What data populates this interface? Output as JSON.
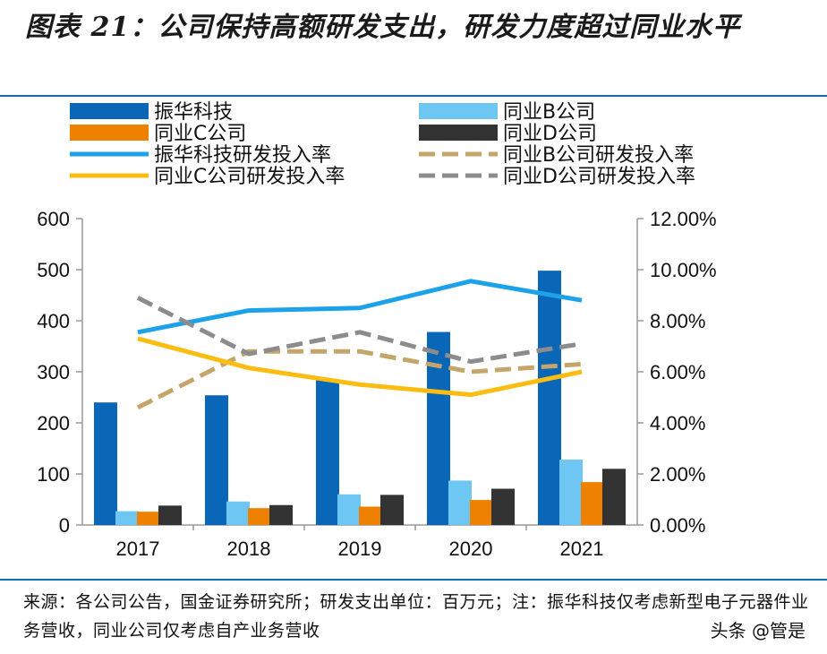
{
  "figure_title": "图表 21：公司保持高额研发支出，研发力度超过同业水平",
  "footnote": "来源：各公司公告，国金证券研究所；研发支出单位：百万元；注：振华科技仅考虑新型电子元器件业务营收，同业公司仅考虑自产业务营收",
  "watermark": "头条 @管是",
  "chart_data": {
    "type": "bar",
    "categories": [
      "2017",
      "2018",
      "2019",
      "2020",
      "2021"
    ],
    "ylim": [
      0,
      600
    ],
    "yticks": [
      "0",
      "100",
      "200",
      "300",
      "400",
      "500",
      "600"
    ],
    "y2lim": [
      0,
      12
    ],
    "y2ticks": [
      "0.00%",
      "2.00%",
      "4.00%",
      "6.00%",
      "8.00%",
      "10.00%",
      "12.00%"
    ],
    "grid": false,
    "legend_position": "top",
    "series": [
      {
        "name": "振华科技",
        "type": "bar",
        "color": "#0a66b7",
        "values": [
          240,
          254,
          285,
          378,
          498
        ]
      },
      {
        "name": "同业B公司",
        "type": "bar",
        "color": "#6ec6f3",
        "values": [
          27,
          46,
          60,
          87,
          128
        ]
      },
      {
        "name": "同业C公司",
        "type": "bar",
        "color": "#ee8200",
        "values": [
          26,
          33,
          36,
          49,
          84
        ]
      },
      {
        "name": "同业D公司",
        "type": "bar",
        "color": "#333333",
        "values": [
          38,
          39,
          59,
          71,
          110
        ]
      },
      {
        "name": "振华科技研发投入率",
        "type": "line",
        "axis": "right",
        "color": "#1da1e8",
        "dash": "solid",
        "values": [
          7.55,
          8.4,
          8.5,
          9.55,
          8.8
        ]
      },
      {
        "name": "同业B公司研发投入率",
        "type": "line",
        "axis": "right",
        "color": "#c4a56a",
        "dash": "dashed",
        "values": [
          4.6,
          6.8,
          6.8,
          6.0,
          6.3
        ]
      },
      {
        "name": "同业C公司研发投入率",
        "type": "line",
        "axis": "right",
        "color": "#fbbd12",
        "dash": "solid",
        "values": [
          7.3,
          6.15,
          5.5,
          5.1,
          6.0
        ]
      },
      {
        "name": "同业D公司研发投入率",
        "type": "line",
        "axis": "right",
        "color": "#8c8c8c",
        "dash": "dashed",
        "values": [
          8.9,
          6.7,
          7.55,
          6.4,
          7.1
        ]
      }
    ]
  }
}
